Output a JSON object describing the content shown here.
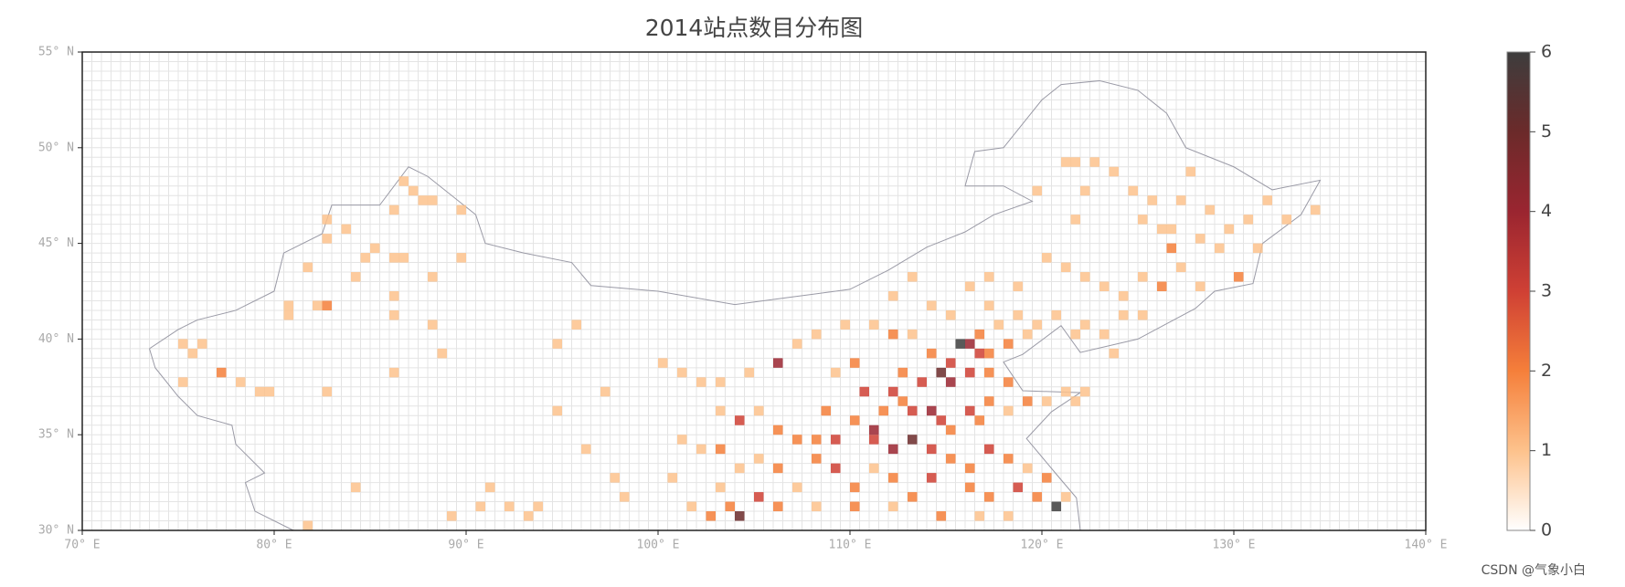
{
  "chart_data": {
    "type": "heatmap",
    "title": "2014站点数目分布图",
    "watermark": "CSDN @气象小白",
    "xlim": [
      70,
      140
    ],
    "ylim": [
      30,
      55
    ],
    "grid": true,
    "grid_step": 0.5,
    "cell_size": 0.5,
    "xticks": [
      {
        "value": 70,
        "label": "70° E"
      },
      {
        "value": 80,
        "label": "80° E"
      },
      {
        "value": 90,
        "label": "90° E"
      },
      {
        "value": 100,
        "label": "100° E"
      },
      {
        "value": 110,
        "label": "110° E"
      },
      {
        "value": 120,
        "label": "120° E"
      },
      {
        "value": 130,
        "label": "130° E"
      },
      {
        "value": 140,
        "label": "140° E"
      }
    ],
    "yticks": [
      {
        "value": 30,
        "label": "30° N"
      },
      {
        "value": 35,
        "label": "35° N"
      },
      {
        "value": 40,
        "label": "40° N"
      },
      {
        "value": 45,
        "label": "45° N"
      },
      {
        "value": 50,
        "label": "50° N"
      },
      {
        "value": 55,
        "label": "55° N"
      }
    ],
    "zlim": [
      0,
      6
    ],
    "zticks": [
      0,
      1,
      2,
      3,
      4,
      5,
      6
    ],
    "colormap": [
      "#ffffff",
      "#fdc28c",
      "#f57f3a",
      "#cf4034",
      "#9a2530",
      "#6b2a2a",
      "#3d3d3d"
    ],
    "points": [
      [
        75,
        39.5,
        1
      ],
      [
        75.5,
        39,
        1
      ],
      [
        76,
        39.5,
        1
      ],
      [
        77,
        38,
        2
      ],
      [
        78,
        37.5,
        1
      ],
      [
        75,
        37.5,
        1
      ],
      [
        79,
        37,
        1
      ],
      [
        79.5,
        37,
        1
      ],
      [
        82.5,
        37,
        1
      ],
      [
        80.5,
        41.5,
        1
      ],
      [
        80.5,
        41,
        1
      ],
      [
        81.5,
        43.5,
        1
      ],
      [
        82,
        41.5,
        1
      ],
      [
        82.5,
        41.5,
        2
      ],
      [
        82.5,
        46,
        1
      ],
      [
        82.5,
        45,
        1
      ],
      [
        83.5,
        45.5,
        1
      ],
      [
        84,
        43,
        1
      ],
      [
        84.5,
        44,
        1
      ],
      [
        85,
        44.5,
        1
      ],
      [
        86,
        44,
        1
      ],
      [
        86.5,
        44,
        1
      ],
      [
        86,
        42,
        1
      ],
      [
        86,
        41,
        1
      ],
      [
        86,
        38,
        1
      ],
      [
        86,
        46.5,
        1
      ],
      [
        86.5,
        48,
        1
      ],
      [
        87,
        47.5,
        1
      ],
      [
        87.5,
        47,
        1
      ],
      [
        88,
        47,
        1
      ],
      [
        88,
        40.5,
        1
      ],
      [
        88.5,
        39,
        1
      ],
      [
        88,
        43,
        1
      ],
      [
        89.5,
        46.5,
        1
      ],
      [
        89.5,
        44,
        1
      ],
      [
        84,
        32,
        1
      ],
      [
        89,
        30.5,
        1
      ],
      [
        90.5,
        31,
        1
      ],
      [
        91,
        32,
        1
      ],
      [
        92,
        31,
        1
      ],
      [
        93,
        30.5,
        1
      ],
      [
        93.5,
        31,
        1
      ],
      [
        94.5,
        36,
        1
      ],
      [
        94.5,
        39.5,
        1
      ],
      [
        95.5,
        40.5,
        1
      ],
      [
        97,
        37,
        1
      ],
      [
        97.5,
        32.5,
        1
      ],
      [
        98,
        31.5,
        1
      ],
      [
        96,
        34,
        1
      ],
      [
        81.5,
        30,
        1
      ],
      [
        121,
        49,
        1
      ],
      [
        121.5,
        49,
        1
      ],
      [
        122.5,
        49,
        1
      ],
      [
        122,
        47.5,
        1
      ],
      [
        123.5,
        48.5,
        1
      ],
      [
        124.5,
        47.5,
        1
      ],
      [
        125,
        46,
        1
      ],
      [
        125.5,
        47,
        1
      ],
      [
        126,
        45.5,
        1
      ],
      [
        126.5,
        44.5,
        2
      ],
      [
        126.5,
        45.5,
        1
      ],
      [
        127,
        47,
        1
      ],
      [
        127.5,
        48.5,
        1
      ],
      [
        128,
        45,
        1
      ],
      [
        128.5,
        46.5,
        1
      ],
      [
        129,
        44.5,
        1
      ],
      [
        129.5,
        45.5,
        1
      ],
      [
        130,
        43,
        2
      ],
      [
        130.5,
        46,
        1
      ],
      [
        131,
        44.5,
        1
      ],
      [
        131.5,
        47,
        1
      ],
      [
        132.5,
        46,
        1
      ],
      [
        134,
        46.5,
        1
      ],
      [
        120,
        44,
        1
      ],
      [
        121,
        43.5,
        1
      ],
      [
        122,
        43,
        1
      ],
      [
        123,
        42.5,
        1
      ],
      [
        124,
        42,
        1
      ],
      [
        125,
        43,
        1
      ],
      [
        126,
        42.5,
        2
      ],
      [
        127,
        43.5,
        1
      ],
      [
        128,
        42.5,
        1
      ],
      [
        121.5,
        46,
        1
      ],
      [
        119.5,
        47.5,
        1
      ],
      [
        118.5,
        42.5,
        1
      ],
      [
        117,
        43,
        1
      ],
      [
        116,
        42.5,
        1
      ],
      [
        113,
        43,
        1
      ],
      [
        112,
        42,
        1
      ],
      [
        114,
        41.5,
        1
      ],
      [
        115,
        41,
        1
      ],
      [
        117,
        41.5,
        1
      ],
      [
        118.5,
        41,
        1
      ],
      [
        119.5,
        40.5,
        1
      ],
      [
        120.5,
        41,
        1
      ],
      [
        121.5,
        40,
        1
      ],
      [
        122,
        40.5,
        1
      ],
      [
        123,
        40,
        1
      ],
      [
        124,
        41,
        1
      ],
      [
        125,
        41,
        1
      ],
      [
        123.5,
        39,
        1
      ],
      [
        115.5,
        39.5,
        6
      ],
      [
        116,
        39.5,
        4
      ],
      [
        116.5,
        39,
        3
      ],
      [
        117,
        39,
        2
      ],
      [
        115,
        38.5,
        3
      ],
      [
        114.5,
        38,
        5
      ],
      [
        115,
        37.5,
        4
      ],
      [
        116,
        38,
        3
      ],
      [
        117,
        38,
        2
      ],
      [
        118,
        37.5,
        2
      ],
      [
        113.5,
        37.5,
        3
      ],
      [
        112.5,
        38,
        2
      ],
      [
        112,
        37,
        3
      ],
      [
        111.5,
        36,
        2
      ],
      [
        112.5,
        36.5,
        2
      ],
      [
        113,
        36,
        3
      ],
      [
        114,
        36,
        4
      ],
      [
        114.5,
        35.5,
        3
      ],
      [
        115,
        35,
        2
      ],
      [
        116,
        36,
        3
      ],
      [
        116.5,
        35.5,
        2
      ],
      [
        117,
        36.5,
        2
      ],
      [
        118,
        36,
        1
      ],
      [
        119,
        36.5,
        2
      ],
      [
        120,
        36.5,
        1
      ],
      [
        121,
        37,
        1
      ],
      [
        110,
        38.5,
        2
      ],
      [
        110.5,
        37,
        3
      ],
      [
        109,
        38,
        1
      ],
      [
        108.5,
        36,
        2
      ],
      [
        109,
        34.5,
        3
      ],
      [
        108,
        34.5,
        2
      ],
      [
        107,
        34.5,
        2
      ],
      [
        106,
        35,
        2
      ],
      [
        105,
        36,
        1
      ],
      [
        104,
        35.5,
        3
      ],
      [
        103,
        36,
        1
      ],
      [
        106,
        38.5,
        4
      ],
      [
        111,
        34.5,
        3
      ],
      [
        112,
        34,
        4
      ],
      [
        113,
        34.5,
        5
      ],
      [
        114,
        34,
        3
      ],
      [
        115,
        33.5,
        2
      ],
      [
        116,
        33,
        2
      ],
      [
        117,
        34,
        3
      ],
      [
        118,
        33.5,
        2
      ],
      [
        119,
        33,
        1
      ],
      [
        120,
        32.5,
        2
      ],
      [
        121,
        31.5,
        1
      ],
      [
        120.5,
        31,
        6
      ],
      [
        119.5,
        31.5,
        2
      ],
      [
        118.5,
        32,
        3
      ],
      [
        117,
        31.5,
        2
      ],
      [
        116,
        32,
        2
      ],
      [
        114,
        32.5,
        3
      ],
      [
        113,
        31.5,
        2
      ],
      [
        112,
        32.5,
        2
      ],
      [
        111,
        33,
        1
      ],
      [
        110,
        32,
        2
      ],
      [
        109,
        33,
        3
      ],
      [
        108,
        33.5,
        2
      ],
      [
        107,
        32,
        1
      ],
      [
        106,
        31,
        2
      ],
      [
        105,
        31.5,
        3
      ],
      [
        104,
        30.5,
        5
      ],
      [
        103.5,
        31,
        2
      ],
      [
        102.5,
        30.5,
        2
      ],
      [
        103,
        32,
        1
      ],
      [
        101.5,
        31,
        1
      ],
      [
        100.5,
        32.5,
        1
      ],
      [
        101,
        34.5,
        1
      ],
      [
        102,
        34,
        1
      ],
      [
        103,
        34,
        2
      ],
      [
        104,
        33,
        1
      ],
      [
        105,
        33.5,
        1
      ],
      [
        106,
        33,
        2
      ],
      [
        108,
        31,
        1
      ],
      [
        110,
        31,
        2
      ],
      [
        112,
        31,
        1
      ],
      [
        114.5,
        30.5,
        2
      ],
      [
        116.5,
        30.5,
        1
      ],
      [
        118,
        30.5,
        1
      ],
      [
        100,
        38.5,
        1
      ],
      [
        101,
        38,
        1
      ],
      [
        102,
        37.5,
        1
      ],
      [
        103,
        37.5,
        1
      ],
      [
        104.5,
        38,
        1
      ],
      [
        107,
        39.5,
        1
      ],
      [
        108,
        40,
        1
      ],
      [
        109.5,
        40.5,
        1
      ],
      [
        111,
        40.5,
        1
      ],
      [
        112,
        40,
        2
      ],
      [
        113,
        40,
        1
      ],
      [
        114,
        39,
        2
      ],
      [
        118,
        39.5,
        2
      ],
      [
        119,
        40,
        1
      ],
      [
        117.5,
        40.5,
        1
      ],
      [
        116.5,
        40,
        2
      ],
      [
        122,
        37,
        1
      ],
      [
        121.5,
        36.5,
        1
      ],
      [
        110,
        35.5,
        2
      ],
      [
        111,
        35,
        4
      ]
    ]
  }
}
